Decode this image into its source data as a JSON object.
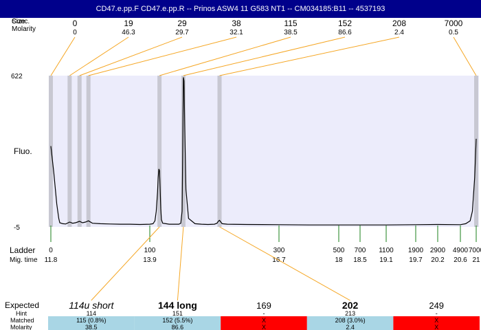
{
  "header": {
    "title": "CD47.e.pp.F  CD47.e.pp.R -- Prinos ASW4 11 G583 NT1 -- CM034185:B11 -- 4537193",
    "size_label": "Size",
    "conc_label": "Conc.",
    "molarity_label": "Molarity"
  },
  "peaks_top": [
    {
      "size": "0",
      "molarity": "0",
      "x": 0
    },
    {
      "size": "19",
      "molarity": "46.3",
      "x": 19
    },
    {
      "size": "29",
      "molarity": "29.7",
      "x": 29
    },
    {
      "size": "38",
      "molarity": "32.1",
      "x": 38
    },
    {
      "size": "115",
      "molarity": "38.5",
      "x": 115
    },
    {
      "size": "152",
      "molarity": "86.6",
      "x": 152
    },
    {
      "size": "208",
      "molarity": "2.4",
      "x": 208
    },
    {
      "size": "7000",
      "molarity": "0.5",
      "x": 7000
    }
  ],
  "axis": {
    "fluo_label": "Fluo.",
    "ymax_label": "622",
    "ymin_label": "-5"
  },
  "ladder": {
    "label": "Ladder",
    "mig_label": "Mig. time",
    "items": [
      {
        "size": "0",
        "time": "11.8"
      },
      {
        "size": "100",
        "time": "13.9"
      },
      {
        "size": "300",
        "time": "16.7"
      },
      {
        "size": "500",
        "time": "18"
      },
      {
        "size": "700",
        "time": "18.5"
      },
      {
        "size": "1100",
        "time": "19.1"
      },
      {
        "size": "1900",
        "time": "19.7"
      },
      {
        "size": "2900",
        "time": "20.2"
      },
      {
        "size": "4900",
        "time": "20.6"
      },
      {
        "size": "7000",
        "time": "21"
      }
    ]
  },
  "expected": {
    "label": "Expected",
    "hint_label": "Hint",
    "matched_label": "Matched",
    "molarity_label": "Molarity",
    "columns": [
      {
        "name": "114u short",
        "style": "italic",
        "hint": "114",
        "matched": "115 (0.8%)",
        "molarity": "38.5",
        "status": "match"
      },
      {
        "name": "144 long",
        "style": "bold",
        "hint": "151",
        "matched": "152 (5.5%)",
        "molarity": "86.6",
        "status": "match"
      },
      {
        "name": "169",
        "style": "normal",
        "hint": "-",
        "matched": "X",
        "molarity": "X",
        "status": "miss"
      },
      {
        "name": "202",
        "style": "bold",
        "hint": "213",
        "matched": "208 (3.0%)",
        "molarity": "2.4",
        "status": "match"
      },
      {
        "name": "249",
        "style": "normal",
        "hint": "-",
        "matched": "X",
        "molarity": "X",
        "status": "miss"
      }
    ]
  },
  "colors": {
    "title_bg": "#00008b",
    "plot_bg": "#ececfb",
    "peak_band": "#c8c8d2",
    "connector": "#f5a623",
    "ladder_tick": "#1a7f1a",
    "match": "#a9d6e5",
    "miss": "#ff0000"
  },
  "chart_data": {
    "type": "line",
    "title": "CD47.e.pp.F  CD47.e.pp.R -- Prinos ASW4 11 G583 NT1 -- CM034185:B11 -- 4537193",
    "xlabel": "",
    "ylabel": "Fluo.",
    "ylim": [
      -5,
      622
    ],
    "x_scale": "ladder size (bp)",
    "series": [
      {
        "x": [
          0,
          3,
          6,
          8,
          9,
          12,
          15,
          19,
          22,
          25,
          29,
          32,
          35,
          38,
          42,
          50,
          60,
          70,
          80,
          90,
          100,
          105,
          108,
          110,
          112,
          113,
          114,
          115,
          116,
          117,
          118,
          120,
          125,
          130,
          135,
          140,
          145,
          148,
          150,
          151,
          152,
          153,
          154,
          156,
          160,
          170,
          180,
          190,
          200,
          204,
          206,
          208,
          210,
          212,
          220,
          250,
          300,
          400,
          500,
          700,
          1100,
          1900,
          2900,
          4900,
          5600,
          6200,
          6500,
          6800,
          7000
        ],
        "y": [
          330,
          220,
          90,
          30,
          12,
          8,
          7,
          15,
          10,
          12,
          18,
          12,
          15,
          20,
          10,
          8,
          7,
          6,
          6,
          5,
          6,
          8,
          20,
          60,
          140,
          200,
          235,
          228,
          160,
          70,
          25,
          10,
          8,
          6,
          6,
          6,
          6,
          10,
          60,
          300,
          615,
          600,
          420,
          150,
          30,
          8,
          6,
          5,
          6,
          10,
          18,
          22,
          15,
          8,
          6,
          5,
          4,
          3,
          3,
          3,
          3,
          4,
          5,
          4,
          8,
          20,
          60,
          200,
          360
        ]
      }
    ]
  }
}
